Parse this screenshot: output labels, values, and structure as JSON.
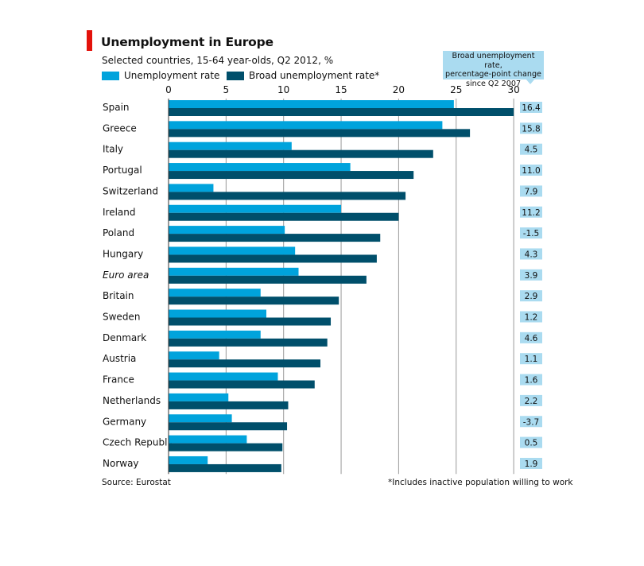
{
  "header": {
    "title": "Unemployment in Europe",
    "subtitle": "Selected countries, 15-64 year-olds, Q2 2012, %"
  },
  "legend": {
    "unemployment": "Unemployment rate",
    "broad": "Broad unemployment rate*"
  },
  "callout": {
    "line1": "Broad unemployment rate,",
    "line2": "percentage-point change",
    "line3": "since Q2 2007"
  },
  "colors": {
    "accent_red": "#e3120b",
    "unemployment": "#00a3dc",
    "broad": "#004f6b",
    "change_box": "#aadbf0",
    "grid": "#999999"
  },
  "chart_data": {
    "type": "bar",
    "orientation": "horizontal",
    "title": "Unemployment in Europe",
    "subtitle": "Selected countries, 15-64 year-olds, Q2 2012, %",
    "xlim": [
      0,
      30
    ],
    "ticks": [
      0,
      5,
      10,
      15,
      20,
      25,
      30
    ],
    "grid": true,
    "legend_position": "top-left",
    "categories": [
      "Spain",
      "Greece",
      "Italy",
      "Portugal",
      "Switzerland",
      "Ireland",
      "Poland",
      "Hungary",
      "Euro area",
      "Britain",
      "Sweden",
      "Denmark",
      "Austria",
      "France",
      "Netherlands",
      "Germany",
      "Czech Republic",
      "Norway"
    ],
    "italic_categories": [
      "Euro area"
    ],
    "series": [
      {
        "name": "Unemployment rate",
        "values": [
          24.8,
          23.8,
          10.7,
          15.8,
          3.9,
          15.0,
          10.1,
          11.0,
          11.3,
          8.0,
          8.5,
          8.0,
          4.4,
          9.5,
          5.2,
          5.5,
          6.8,
          3.4
        ]
      },
      {
        "name": "Broad unemployment rate*",
        "values": [
          30.0,
          26.2,
          23.0,
          21.3,
          20.6,
          20.0,
          18.4,
          18.1,
          17.2,
          14.8,
          14.1,
          13.8,
          13.2,
          12.7,
          10.4,
          10.3,
          9.9,
          9.8
        ]
      }
    ],
    "change_label": "Broad unemployment rate, percentage-point change since Q2 2007",
    "change_values": [
      "16.4",
      "15.8",
      "4.5",
      "11.0",
      "7.9",
      "11.2",
      "-1.5",
      "4.3",
      "3.9",
      "2.9",
      "1.2",
      "4.6",
      "1.1",
      "1.6",
      "2.2",
      "-3.7",
      "0.5",
      "1.9"
    ]
  },
  "footer": {
    "source": "Source: Eurostat",
    "footnote": "*Includes inactive population willing to work"
  }
}
